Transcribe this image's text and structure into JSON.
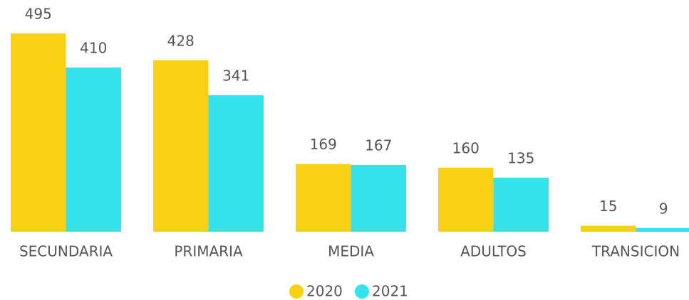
{
  "chart_data": {
    "type": "bar",
    "categories": [
      "SECUNDARIA",
      "PRIMARIA",
      "MEDIA",
      "ADULTOS",
      "TRANSICION"
    ],
    "series": [
      {
        "name": "2020",
        "color": "#FAD014",
        "values": [
          495,
          428,
          169,
          160,
          15
        ]
      },
      {
        "name": "2021",
        "color": "#33E4EC",
        "values": [
          410,
          341,
          167,
          135,
          9
        ]
      }
    ],
    "legend": "bottom"
  }
}
